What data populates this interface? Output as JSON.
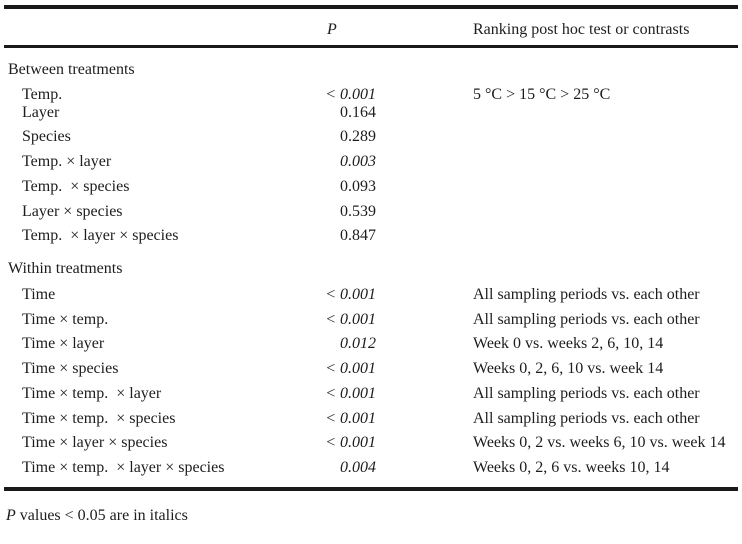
{
  "table": {
    "columns": {
      "p_label": "P",
      "ranking_label": "Ranking post hoc test or contrasts"
    },
    "sections": [
      {
        "title": "Between treatments",
        "rows": [
          {
            "label": "Temp.",
            "p": "< 0.001",
            "sig": true,
            "ranking": "5 °C > 15 °C > 25 °C"
          },
          {
            "label": "Layer",
            "p": "0.164",
            "sig": false,
            "ranking": ""
          },
          {
            "label": "Species",
            "p": "0.289",
            "sig": false,
            "ranking": ""
          },
          {
            "label": "Temp. × layer",
            "p": "0.003",
            "sig": true,
            "ranking": ""
          },
          {
            "label": "Temp.  × species",
            "p": "0.093",
            "sig": false,
            "ranking": ""
          },
          {
            "label": "Layer × species",
            "p": "0.539",
            "sig": false,
            "ranking": ""
          },
          {
            "label": "Temp.  × layer × species",
            "p": "0.847",
            "sig": false,
            "ranking": ""
          }
        ]
      },
      {
        "title": "Within treatments",
        "rows": [
          {
            "label": "Time",
            "p": "< 0.001",
            "sig": true,
            "ranking": "All sampling periods vs. each other"
          },
          {
            "label": "Time × temp.",
            "p": "< 0.001",
            "sig": true,
            "ranking": "All sampling periods vs. each other"
          },
          {
            "label": "Time × layer",
            "p": "0.012",
            "sig": true,
            "ranking": "Week 0 vs. weeks 2, 6, 10, 14"
          },
          {
            "label": "Time × species",
            "p": "< 0.001",
            "sig": true,
            "ranking": "Weeks 0, 2, 6, 10 vs. week 14"
          },
          {
            "label": "Time × temp.  × layer",
            "p": "< 0.001",
            "sig": true,
            "ranking": "All sampling periods vs. each other"
          },
          {
            "label": "Time × temp.  × species",
            "p": "< 0.001",
            "sig": true,
            "ranking": "All sampling periods vs. each other"
          },
          {
            "label": "Time × layer × species",
            "p": "< 0.001",
            "sig": true,
            "ranking": "Weeks 0, 2 vs. weeks 6, 10 vs. week 14"
          },
          {
            "label": "Time × temp.  × layer × species",
            "p": "0.004",
            "sig": true,
            "ranking": "Weeks 0, 2, 6 vs. weeks 10, 14"
          }
        ]
      }
    ],
    "footnote": {
      "p_symbol": "P",
      "text": " values < 0.05 are in italics"
    }
  }
}
